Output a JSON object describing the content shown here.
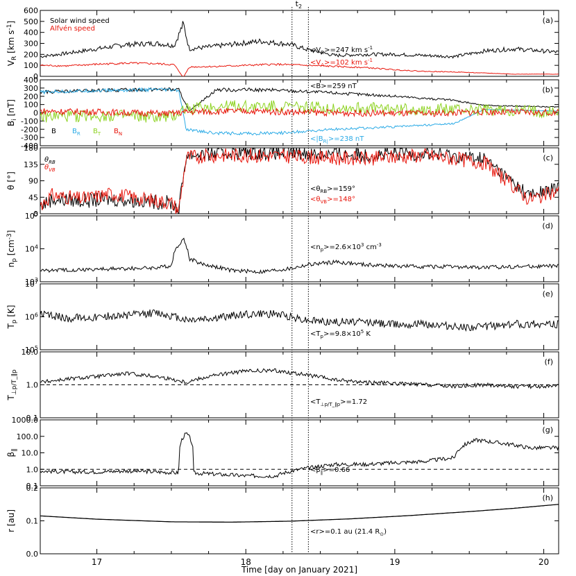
{
  "figure": {
    "xlabel": "Time [day on January 2021]",
    "xticks": [
      "17",
      "18",
      "19",
      "20"
    ],
    "xrange": [
      16.62,
      20.1
    ],
    "marker_label": "t",
    "marker_sub": "2",
    "dotted_lines_x": [
      18.31,
      18.42
    ]
  },
  "colors": {
    "black": "#000000",
    "red": "#e8140a",
    "blue": "#2aaae6",
    "green": "#8cd21e"
  },
  "chart_data": [
    {
      "panel": "a",
      "tag": "(a)",
      "type": "line",
      "ylabel": "V_R [km s^-1]",
      "ylim": [
        0,
        600
      ],
      "yticks": [
        "0",
        "100",
        "200",
        "300",
        "400",
        "500",
        "600"
      ],
      "legend": [
        "Solar wind speed",
        "Alfvén speed"
      ],
      "annotations": [
        "<V_R>=247 km s^-1",
        "<V_A>=102 km s^-1"
      ],
      "series": [
        {
          "color": "black",
          "x": [
            16.62,
            16.8,
            17.0,
            17.2,
            17.4,
            17.52,
            17.58,
            17.62,
            17.7,
            17.9,
            18.1,
            18.3,
            18.42,
            18.6,
            18.8,
            19.0,
            19.2,
            19.4,
            19.6,
            19.8,
            20.1
          ],
          "y": [
            180,
            210,
            250,
            290,
            300,
            280,
            480,
            250,
            260,
            290,
            320,
            290,
            240,
            190,
            200,
            200,
            190,
            180,
            230,
            250,
            220
          ]
        },
        {
          "color": "red",
          "x": [
            16.62,
            16.8,
            17.0,
            17.2,
            17.4,
            17.52,
            17.58,
            17.62,
            17.8,
            18.0,
            18.2,
            18.4,
            18.6,
            18.8,
            19.0,
            19.2,
            19.4,
            19.6,
            19.8,
            20.1
          ],
          "y": [
            100,
            95,
            110,
            120,
            115,
            105,
            -10,
            85,
            90,
            100,
            110,
            100,
            90,
            80,
            60,
            45,
            40,
            30,
            20,
            20
          ]
        }
      ]
    },
    {
      "panel": "b",
      "tag": "(b)",
      "type": "line",
      "ylabel": "B_i [nT]",
      "ylim": [
        -400,
        400
      ],
      "yticks": [
        "-400",
        "-300",
        "-200",
        "-100",
        "0",
        "100",
        "200",
        "300",
        "400"
      ],
      "legend": [
        "B",
        "B_R",
        "B_T",
        "B_N"
      ],
      "annotations": [
        "<B>=259 nT",
        "<|B_R|>=238 nT"
      ],
      "series": [
        {
          "color": "black",
          "x": [
            16.62,
            17.0,
            17.4,
            17.55,
            17.62,
            17.8,
            18.2,
            18.6,
            19.0,
            19.4,
            19.6,
            20.1
          ],
          "y": [
            250,
            270,
            285,
            280,
            20,
            280,
            275,
            240,
            200,
            150,
            90,
            70
          ]
        },
        {
          "color": "blue",
          "x": [
            16.62,
            17.0,
            17.4,
            17.55,
            17.6,
            17.8,
            18.2,
            18.6,
            19.0,
            19.4,
            19.6,
            20.1
          ],
          "y": [
            250,
            270,
            280,
            270,
            -200,
            -250,
            -250,
            -200,
            -170,
            -130,
            40,
            20
          ]
        },
        {
          "color": "green",
          "x": [
            16.62,
            17.0,
            17.5,
            17.6,
            18.0,
            18.6,
            19.2,
            19.6,
            20.1
          ],
          "y": [
            -50,
            -30,
            -60,
            60,
            80,
            60,
            40,
            30,
            10
          ]
        },
        {
          "color": "red",
          "x": [
            16.62,
            17.0,
            17.5,
            17.6,
            18.0,
            18.6,
            19.2,
            19.6,
            20.1
          ],
          "y": [
            20,
            10,
            -10,
            10,
            20,
            0,
            -10,
            10,
            0
          ]
        }
      ]
    },
    {
      "panel": "c",
      "tag": "(c)",
      "type": "line",
      "ylabel": "θ [°]",
      "ylim": [
        0,
        180
      ],
      "yticks": [
        "0",
        "45",
        "90",
        "135",
        "180"
      ],
      "legend": [
        "θ_RB",
        "θ_VB"
      ],
      "annotations": [
        "<θ_RB>=159°",
        "<θ_VB>=148°"
      ],
      "series": [
        {
          "color": "black",
          "x": [
            16.62,
            16.7,
            16.9,
            17.1,
            17.3,
            17.5,
            17.55,
            17.6,
            17.8,
            18.0,
            18.4,
            18.8,
            19.2,
            19.6,
            19.75,
            19.9,
            20.1
          ],
          "y": [
            20,
            40,
            35,
            40,
            35,
            30,
            10,
            160,
            165,
            168,
            165,
            160,
            165,
            150,
            100,
            50,
            70
          ]
        },
        {
          "color": "red",
          "x": [
            16.62,
            16.7,
            16.9,
            17.1,
            17.3,
            17.5,
            17.55,
            17.6,
            17.8,
            18.0,
            18.4,
            18.8,
            19.2,
            19.6,
            19.75,
            19.9,
            20.1
          ],
          "y": [
            25,
            50,
            40,
            55,
            40,
            30,
            10,
            155,
            160,
            160,
            155,
            150,
            160,
            140,
            90,
            40,
            60
          ]
        }
      ]
    },
    {
      "panel": "d",
      "tag": "(d)",
      "type": "line",
      "ylabel": "n_p [cm^-3]",
      "ylim": [
        1000,
        100000
      ],
      "yscale": "log",
      "yticks": [
        "10^3",
        "10^4",
        "10^5"
      ],
      "annotations": [
        "<n_p>=2.6×10^3 cm^-3"
      ],
      "series": [
        {
          "color": "black",
          "x": [
            16.62,
            16.8,
            17.0,
            17.2,
            17.4,
            17.5,
            17.58,
            17.62,
            17.7,
            17.9,
            18.1,
            18.3,
            18.42,
            18.6,
            18.8,
            19.0,
            19.2,
            19.4,
            19.6,
            19.8,
            20.1
          ],
          "y": [
            2200,
            2300,
            2400,
            2500,
            2700,
            3000,
            20000,
            5000,
            3500,
            2200,
            2000,
            2500,
            3300,
            4000,
            3300,
            3000,
            2900,
            2800,
            2700,
            2900,
            3000
          ]
        }
      ]
    },
    {
      "panel": "e",
      "tag": "(e)",
      "type": "line",
      "ylabel": "T_p [K]",
      "ylim": [
        100000,
        10000000
      ],
      "yscale": "log",
      "yticks": [
        "10^5",
        "10^6",
        "10^7"
      ],
      "annotations": [
        "<T_p>=9.8×10^5 K"
      ],
      "series": [
        {
          "color": "black",
          "x": [
            16.62,
            16.8,
            17.0,
            17.2,
            17.4,
            17.6,
            17.8,
            18.0,
            18.2,
            18.4,
            18.6,
            18.8,
            19.0,
            19.2,
            19.4,
            19.6,
            19.8,
            20.1
          ],
          "y": [
            1200000,
            900000,
            1000000,
            1100000,
            1300000,
            800000,
            900000,
            1200000,
            1200000,
            800000,
            700000,
            700000,
            600000,
            600000,
            500000,
            500000,
            600000,
            600000
          ]
        }
      ]
    },
    {
      "panel": "f",
      "tag": "(f)",
      "type": "line",
      "ylabel": "T_⊥p/T_∥p",
      "ylim": [
        0.1,
        10
      ],
      "yscale": "log",
      "yticks": [
        "0.1",
        "1.0",
        "10.0"
      ],
      "reference_line": 1.0,
      "annotations": [
        "<T_⊥p/T_∥p>=1.72"
      ],
      "series": [
        {
          "color": "black",
          "x": [
            16.62,
            16.8,
            17.0,
            17.2,
            17.4,
            17.6,
            17.8,
            18.0,
            18.2,
            18.4,
            18.6,
            18.8,
            19.0,
            19.2,
            19.4,
            19.6,
            19.8,
            20.1
          ],
          "y": [
            1.2,
            1.5,
            1.8,
            2.2,
            1.8,
            1.2,
            2.0,
            2.6,
            2.7,
            2.0,
            1.4,
            1.2,
            1.1,
            1.0,
            0.9,
            1.0,
            0.9,
            0.9
          ]
        }
      ]
    },
    {
      "panel": "g",
      "tag": "(g)",
      "type": "line",
      "ylabel": "β_∥",
      "ylim": [
        0.1,
        1000
      ],
      "yscale": "log",
      "yticks": [
        "0.1",
        "1.0",
        "10.0",
        "100.0",
        "1000.0"
      ],
      "reference_line": 1.0,
      "annotations": [
        "<β_∥>=0.66"
      ],
      "series": [
        {
          "color": "black",
          "x": [
            16.62,
            16.8,
            17.0,
            17.2,
            17.4,
            17.55,
            17.6,
            17.65,
            17.8,
            18.0,
            18.2,
            18.42,
            18.6,
            18.8,
            19.0,
            19.2,
            19.4,
            19.55,
            19.7,
            19.9,
            20.1
          ],
          "y": [
            0.8,
            0.7,
            0.7,
            0.8,
            0.7,
            0.6,
            150,
            0.6,
            0.5,
            0.4,
            0.4,
            1.2,
            2.0,
            2.0,
            2.5,
            3.0,
            5.0,
            60,
            40,
            20,
            20
          ]
        }
      ]
    },
    {
      "panel": "h",
      "tag": "(h)",
      "type": "line",
      "ylabel": "r [au]",
      "ylim": [
        0.0,
        0.2
      ],
      "yticks": [
        "0.0",
        "0.1",
        "0.2"
      ],
      "annotations": [
        "<r>=0.1 au (21.4 R_⊙)"
      ],
      "series": [
        {
          "color": "black",
          "x": [
            16.62,
            17.0,
            17.5,
            17.9,
            18.3,
            18.7,
            19.1,
            19.5,
            19.8,
            20.1
          ],
          "y": [
            0.115,
            0.105,
            0.097,
            0.096,
            0.099,
            0.106,
            0.116,
            0.128,
            0.138,
            0.15
          ]
        }
      ]
    }
  ]
}
